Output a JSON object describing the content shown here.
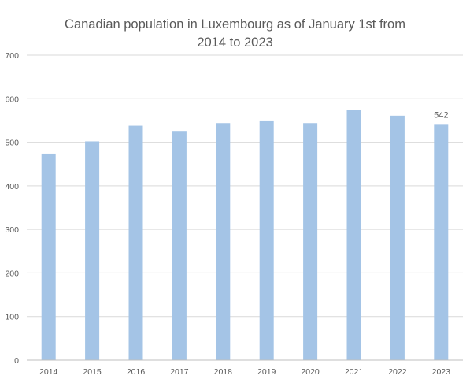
{
  "chart_data": {
    "type": "bar",
    "title_lines": [
      "Canadian population in Luxembourg as of January 1st from",
      "2014 to 2023"
    ],
    "categories": [
      "2014",
      "2015",
      "2016",
      "2017",
      "2018",
      "2019",
      "2020",
      "2021",
      "2022",
      "2023"
    ],
    "values": [
      474,
      502,
      538,
      526,
      544,
      550,
      544,
      574,
      561,
      542
    ],
    "data_labels": [
      {
        "category": "2023",
        "text": "542"
      }
    ],
    "xlabel": "",
    "ylabel": "",
    "ylim": [
      0,
      700
    ],
    "yticks": [
      "0",
      "100",
      "200",
      "300",
      "400",
      "500",
      "600",
      "700"
    ],
    "grid": true,
    "legend": "none",
    "colors": {
      "bar": "#a4c4e6",
      "grid": "#d9d9d9",
      "axis": "#bfbfbf",
      "text": "#595959"
    }
  }
}
